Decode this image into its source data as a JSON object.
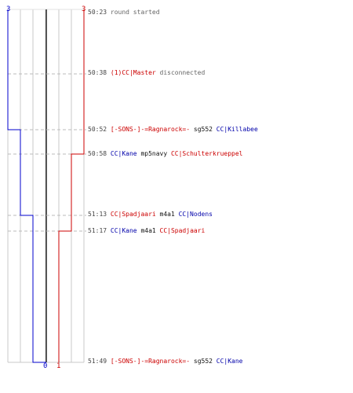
{
  "colors": {
    "team_blue": "#0000cc",
    "team_red": "#cc0000",
    "grid": "#c8c8c8",
    "dash": "#bbbbbb",
    "text_gray": "#666666"
  },
  "scores": {
    "blue_top": "3",
    "red_top": "3",
    "blue_bottom": "0",
    "red_bottom": "1"
  },
  "events": [
    {
      "time": "50:23",
      "parts": [
        {
          "text": "round started",
          "style": "msg"
        }
      ]
    },
    {
      "time": "50:38",
      "parts": [
        {
          "text": "(1)CC|Master",
          "style": "red"
        },
        {
          "text": " disconnected",
          "style": "msg"
        }
      ]
    },
    {
      "time": "50:52",
      "parts": [
        {
          "text": "[-SONS-]-=Ragnarock=-",
          "style": "red"
        },
        {
          "text": " sg552 ",
          "style": "black"
        },
        {
          "text": "CC|Killabee",
          "style": "blue"
        }
      ]
    },
    {
      "time": "50:58",
      "parts": [
        {
          "text": "CC|Kane",
          "style": "blue"
        },
        {
          "text": " mp5navy ",
          "style": "black"
        },
        {
          "text": "CC|Schulterkrueppel",
          "style": "red"
        }
      ]
    },
    {
      "time": "51:13",
      "parts": [
        {
          "text": "CC|Spadjaari",
          "style": "red"
        },
        {
          "text": " m4a1 ",
          "style": "black"
        },
        {
          "text": "CC|Nodens",
          "style": "blue"
        }
      ]
    },
    {
      "time": "51:17",
      "parts": [
        {
          "text": "CC|Kane",
          "style": "blue"
        },
        {
          "text": " m4a1 ",
          "style": "black"
        },
        {
          "text": "CC|Spadjaari",
          "style": "red"
        }
      ]
    },
    {
      "time": "51:49",
      "parts": [
        {
          "text": "[-SONS-]-=Ragnarock=-",
          "style": "red"
        },
        {
          "text": " sg552 ",
          "style": "black"
        },
        {
          "text": "CC|Kane",
          "style": "blue"
        }
      ]
    }
  ]
}
